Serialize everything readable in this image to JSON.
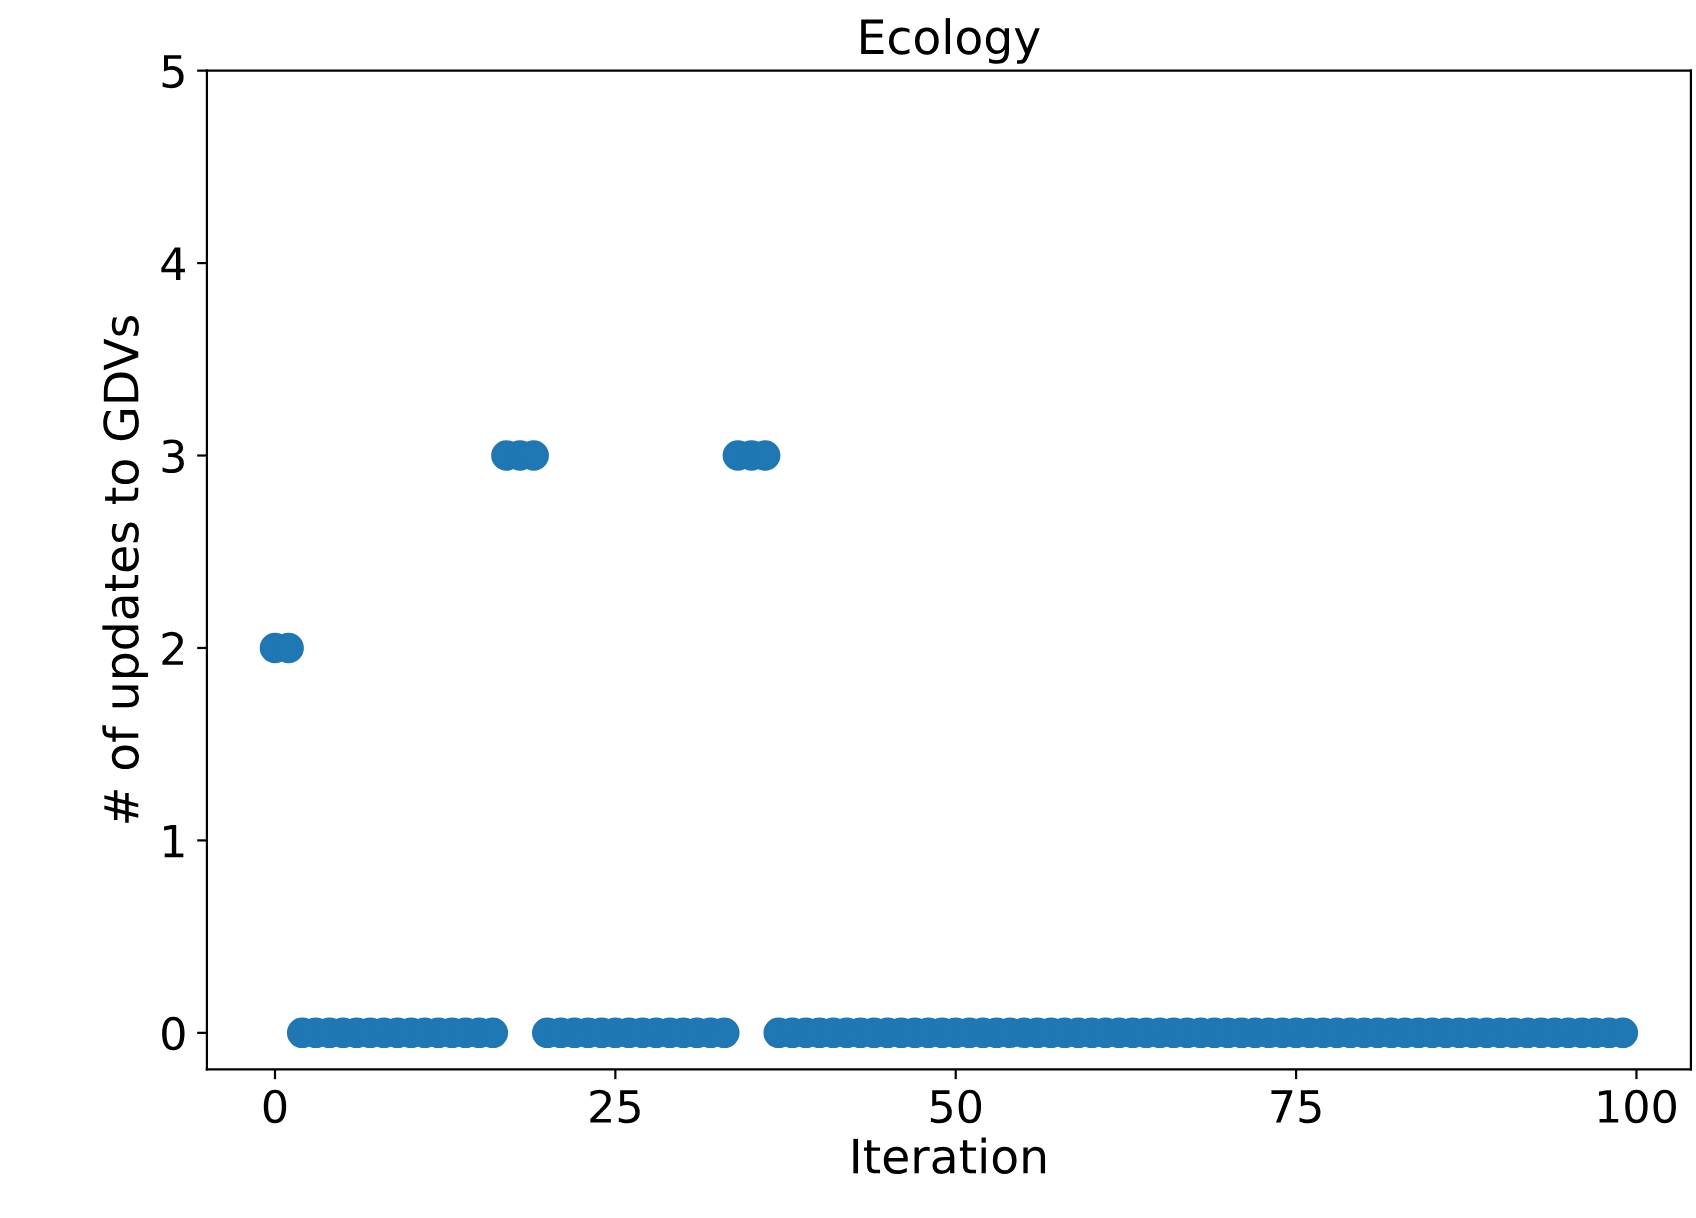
{
  "chart_data": {
    "type": "scatter",
    "title": "Ecology",
    "xlabel": "Iteration",
    "ylabel": "# of updates to GDVs",
    "x": [
      0,
      1,
      2,
      3,
      4,
      5,
      6,
      7,
      8,
      9,
      10,
      11,
      12,
      13,
      14,
      15,
      16,
      17,
      18,
      19,
      20,
      21,
      22,
      23,
      24,
      25,
      26,
      27,
      28,
      29,
      30,
      31,
      32,
      33,
      34,
      35,
      36,
      37,
      38,
      39,
      40,
      41,
      42,
      43,
      44,
      45,
      46,
      47,
      48,
      49,
      50,
      51,
      52,
      53,
      54,
      55,
      56,
      57,
      58,
      59,
      60,
      61,
      62,
      63,
      64,
      65,
      66,
      67,
      68,
      69,
      70,
      71,
      72,
      73,
      74,
      75,
      76,
      77,
      78,
      79,
      80,
      81,
      82,
      83,
      84,
      85,
      86,
      87,
      88,
      89,
      90,
      91,
      92,
      93,
      94,
      95,
      96,
      97,
      98,
      99
    ],
    "series": [
      {
        "color": "#1f77b4",
        "values": [
          2,
          2,
          0,
          0,
          0,
          0,
          0,
          0,
          0,
          0,
          0,
          0,
          0,
          0,
          0,
          0,
          0,
          3,
          3,
          3,
          0,
          0,
          0,
          0,
          0,
          0,
          0,
          0,
          0,
          0,
          0,
          0,
          0,
          0,
          3,
          3,
          3,
          0,
          0,
          0,
          0,
          0,
          0,
          0,
          0,
          0,
          0,
          0,
          0,
          0,
          0,
          0,
          0,
          0,
          0,
          0,
          0,
          0,
          0,
          0,
          0,
          0,
          0,
          0,
          0,
          0,
          0,
          0,
          0,
          0,
          0,
          0,
          0,
          0,
          0,
          0,
          0,
          0,
          0,
          0,
          0,
          0,
          0,
          0,
          0,
          0,
          0,
          0,
          0,
          0,
          0,
          0,
          0,
          0,
          0,
          0,
          0,
          0,
          0,
          0
        ]
      }
    ],
    "xlim": [
      -5,
      104
    ],
    "ylim": [
      -0.19,
      5
    ],
    "xticks": [
      0,
      25,
      50,
      75,
      100
    ],
    "yticks": [
      0,
      1,
      2,
      3,
      4,
      5
    ],
    "marker": "circle",
    "grid": false,
    "legend": false
  }
}
